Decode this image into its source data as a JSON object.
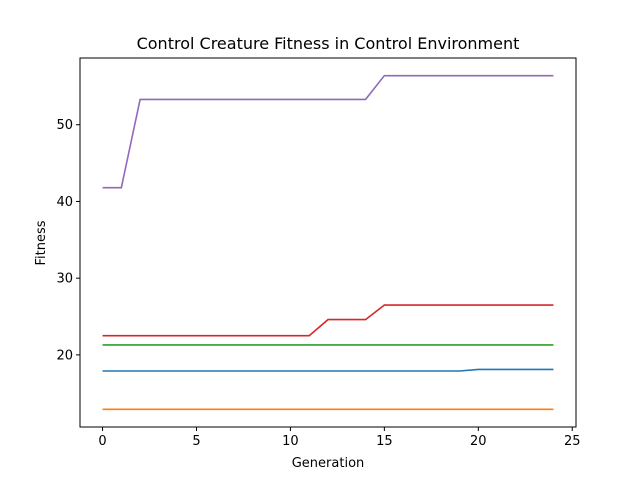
{
  "chart_data": {
    "type": "line",
    "title": "Control Creature Fitness in Control Environment",
    "xlabel": "Generation",
    "ylabel": "Fitness",
    "xlim": [
      -1.2,
      25.2
    ],
    "ylim": [
      10.6,
      58.7
    ],
    "xticks": [
      0,
      5,
      10,
      15,
      20,
      25
    ],
    "yticks": [
      20,
      30,
      40,
      50
    ],
    "grid": false,
    "legend": "none",
    "x": [
      0,
      1,
      2,
      3,
      4,
      5,
      6,
      7,
      8,
      9,
      10,
      11,
      12,
      13,
      14,
      15,
      16,
      17,
      18,
      19,
      20,
      21,
      22,
      23,
      24
    ],
    "series": [
      {
        "color": "#1f77b4",
        "values": [
          17.9,
          17.9,
          17.9,
          17.9,
          17.9,
          17.9,
          17.9,
          17.9,
          17.9,
          17.9,
          17.9,
          17.9,
          17.9,
          17.9,
          17.9,
          17.9,
          17.9,
          17.9,
          17.9,
          17.9,
          18.1,
          18.1,
          18.1,
          18.1,
          18.1
        ]
      },
      {
        "color": "#ff7f0e",
        "values": [
          12.9,
          12.9,
          12.9,
          12.9,
          12.9,
          12.9,
          12.9,
          12.9,
          12.9,
          12.9,
          12.9,
          12.9,
          12.9,
          12.9,
          12.9,
          12.9,
          12.9,
          12.9,
          12.9,
          12.9,
          12.9,
          12.9,
          12.9,
          12.9,
          12.9
        ]
      },
      {
        "color": "#2ca02c",
        "values": [
          21.3,
          21.3,
          21.3,
          21.3,
          21.3,
          21.3,
          21.3,
          21.3,
          21.3,
          21.3,
          21.3,
          21.3,
          21.3,
          21.3,
          21.3,
          21.3,
          21.3,
          21.3,
          21.3,
          21.3,
          21.3,
          21.3,
          21.3,
          21.3,
          21.3
        ]
      },
      {
        "color": "#d62728",
        "values": [
          22.5,
          22.5,
          22.5,
          22.5,
          22.5,
          22.5,
          22.5,
          22.5,
          22.5,
          22.5,
          22.5,
          22.5,
          24.6,
          24.6,
          24.6,
          26.5,
          26.5,
          26.5,
          26.5,
          26.5,
          26.5,
          26.5,
          26.5,
          26.5,
          26.5
        ]
      },
      {
        "color": "#9467bd",
        "values": [
          41.8,
          41.8,
          53.3,
          53.3,
          53.3,
          53.3,
          53.3,
          53.3,
          53.3,
          53.3,
          53.3,
          53.3,
          53.3,
          53.3,
          53.3,
          56.4,
          56.4,
          56.4,
          56.4,
          56.4,
          56.4,
          56.4,
          56.4,
          56.4,
          56.4
        ]
      }
    ]
  }
}
